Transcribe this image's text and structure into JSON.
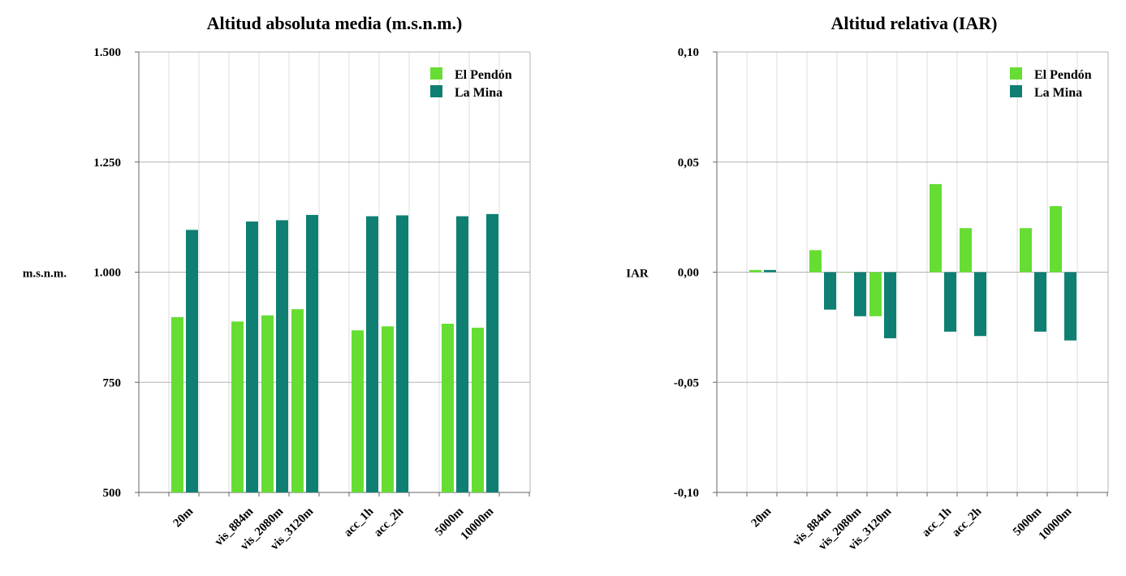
{
  "colors": {
    "el_pendon": "#66dd33",
    "la_mina": "#0e7f72",
    "grid": "#b3b3b3",
    "minor_grid": "#dddddd",
    "axis": "#666666"
  },
  "chart_data": [
    {
      "type": "bar",
      "title": "Altitud absoluta media (m.s.n.m.)",
      "ylabel": "m.s.n.m.",
      "xlabel": "",
      "ylim": [
        500,
        1500
      ],
      "yticks": [
        500,
        750,
        1000,
        1250,
        1500
      ],
      "ytick_labels": [
        "500",
        "750",
        "1.000",
        "1.250",
        "1.500"
      ],
      "categories": [
        "20m",
        "vis_884m",
        "vis_2080m",
        "vis_3120m",
        "acc_1h",
        "acc_2h",
        "5000m",
        "10000m"
      ],
      "slots": [
        1,
        3,
        4,
        5,
        7,
        8,
        10,
        11
      ],
      "grid": true,
      "legend_position": "top-right",
      "series": [
        {
          "name": "El Pendón",
          "values": [
            898,
            888,
            902,
            916,
            868,
            877,
            883,
            874
          ]
        },
        {
          "name": "La Mina",
          "values": [
            1096,
            1115,
            1118,
            1130,
            1127,
            1129,
            1127,
            1132
          ]
        }
      ]
    },
    {
      "type": "bar",
      "title": "Altitud relativa (IAR)",
      "ylabel": "IAR",
      "xlabel": "",
      "ylim": [
        -0.1,
        0.1
      ],
      "yticks": [
        -0.1,
        -0.05,
        0,
        0.05,
        0.1
      ],
      "ytick_labels": [
        "-0,10",
        "-0,05",
        "0,00",
        "0,05",
        "0,10"
      ],
      "categories": [
        "20m",
        "vis_884m",
        "vis_2080m",
        "vis_3120m",
        "acc_1h",
        "acc_2h",
        "5000m",
        "10000m"
      ],
      "slots": [
        1,
        3,
        4,
        5,
        7,
        8,
        10,
        11
      ],
      "grid": true,
      "legend_position": "top-right",
      "series": [
        {
          "name": "El Pendón",
          "values": [
            0.001,
            0.01,
            0,
            -0.02,
            0.04,
            0.02,
            0.02,
            0.03
          ]
        },
        {
          "name": "La Mina",
          "values": [
            0.001,
            -0.017,
            -0.02,
            -0.03,
            -0.027,
            -0.029,
            -0.027,
            -0.031
          ]
        }
      ]
    }
  ]
}
